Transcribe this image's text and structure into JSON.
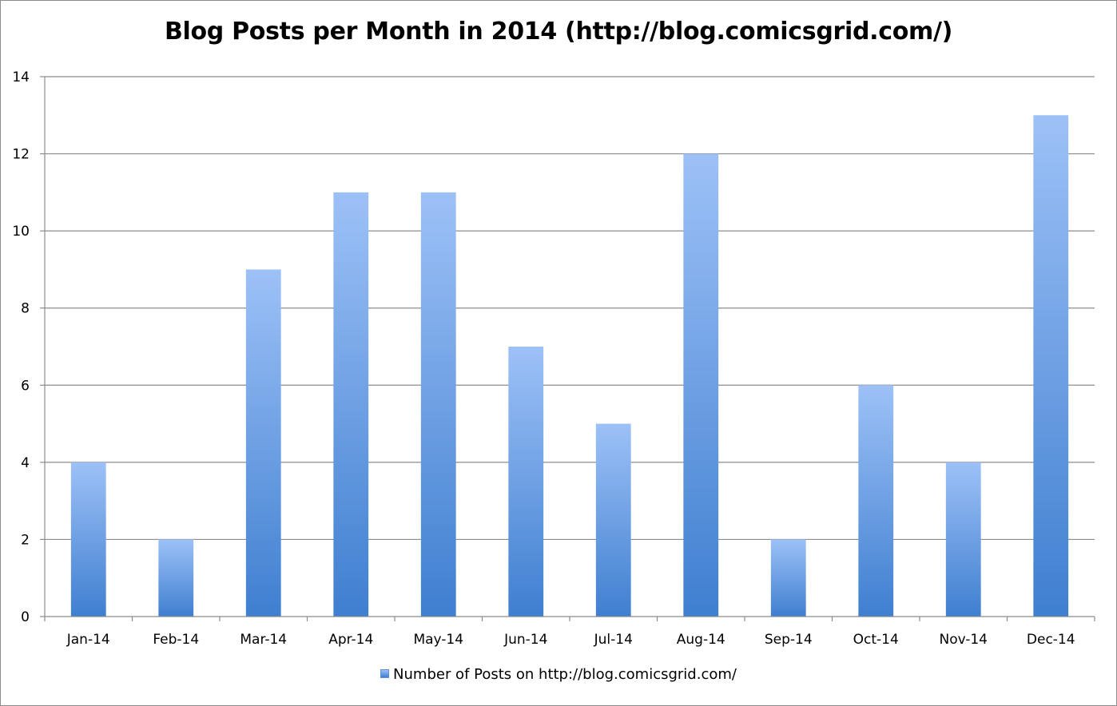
{
  "chart_data": {
    "type": "bar",
    "title": "Blog Posts per Month in 2014 (http://blog.comicsgrid.com/)",
    "categories": [
      "Jan-14",
      "Feb-14",
      "Mar-14",
      "Apr-14",
      "May-14",
      "Jun-14",
      "Jul-14",
      "Aug-14",
      "Sep-14",
      "Oct-14",
      "Nov-14",
      "Dec-14"
    ],
    "series": [
      {
        "name": "Number of Posts on http://blog.comicsgrid.com/",
        "values": [
          4,
          2,
          9,
          11,
          11,
          7,
          5,
          12,
          2,
          6,
          4,
          13
        ]
      }
    ],
    "yticks": [
      "0",
      "2",
      "4",
      "6",
      "8",
      "10",
      "12",
      "14"
    ],
    "ylim": [
      0,
      14
    ],
    "xlabel": "",
    "ylabel": "",
    "grid": true,
    "legend_position": "bottom",
    "colors": {
      "bar_top": "#9dc1f7",
      "bar_bottom": "#3f7fd0",
      "gridline": "#8c8c8c",
      "axis": "#8c8c8c"
    }
  }
}
